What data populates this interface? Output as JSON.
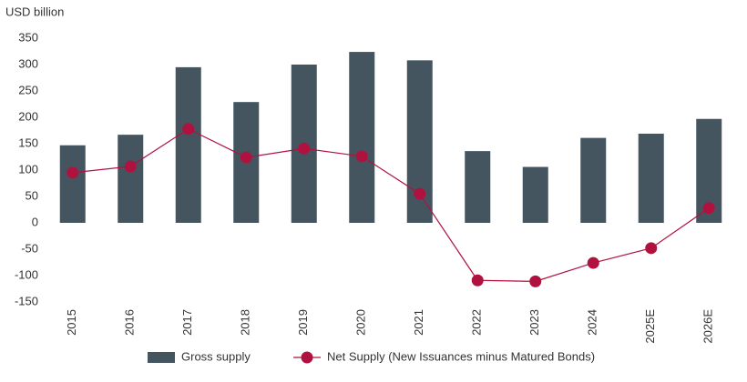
{
  "chart_data": {
    "type": "bar_line",
    "y_label": "USD billion",
    "categories": [
      "2015",
      "2016",
      "2017",
      "2018",
      "2019",
      "2020",
      "2021",
      "2022",
      "2023",
      "2024",
      "2025E",
      "2026E"
    ],
    "series": [
      {
        "name": "Gross supply",
        "type": "bar",
        "color": "#455560",
        "values": [
          147,
          167,
          295,
          229,
          300,
          324,
          308,
          136,
          106,
          161,
          169,
          197
        ]
      },
      {
        "name": "Net Supply (New Issuances minus Matured Bonds)",
        "type": "line",
        "color": "#b0123f",
        "values": [
          95,
          107,
          178,
          124,
          141,
          126,
          55,
          -109,
          -111,
          -76,
          -48,
          28
        ]
      }
    ],
    "ylim": [
      -150,
      350
    ],
    "yticks": [
      -150,
      -100,
      -50,
      0,
      50,
      100,
      150,
      200,
      250,
      300,
      350
    ]
  }
}
